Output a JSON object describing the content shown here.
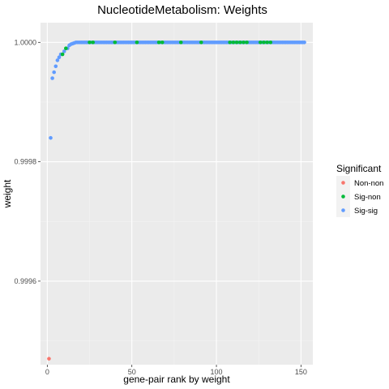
{
  "chart_data": {
    "type": "scatter",
    "title": "NucleotideMetabolism: Weights",
    "xlabel": "gene-pair rank by weight",
    "ylabel": "weight",
    "xlim": [
      -4,
      157
    ],
    "ylim": [
      0.99946,
      1.000033
    ],
    "x_ticks": [
      0,
      50,
      100,
      150
    ],
    "x_tick_labels": [
      "0",
      "50",
      "100",
      "150"
    ],
    "y_ticks": [
      0.9996,
      0.9998,
      1.0
    ],
    "y_tick_labels": [
      "0.9996",
      "0.9998",
      "1.0000"
    ],
    "grid": true,
    "legend": {
      "title": "Significant",
      "placement": "right",
      "entries": [
        {
          "label": "Non-non",
          "color": "#F8766D"
        },
        {
          "label": "Sig-non",
          "color": "#00BA38"
        },
        {
          "label": "Sig-sig",
          "color": "#619CFF"
        }
      ]
    },
    "series": [
      {
        "name": "Non-non",
        "color": "#F8766D",
        "points": [
          [
            1,
            0.99947
          ]
        ]
      },
      {
        "name": "Sig-non",
        "color": "#00BA38",
        "points": [
          [
            9,
            0.99998
          ],
          [
            11,
            0.99999
          ],
          [
            25,
            1.0
          ],
          [
            27,
            1.0
          ],
          [
            40,
            1.0
          ],
          [
            53,
            1.0
          ],
          [
            66,
            1.0
          ],
          [
            68,
            1.0
          ],
          [
            79,
            1.0
          ],
          [
            91,
            1.0
          ],
          [
            108,
            1.0
          ],
          [
            110,
            1.0
          ],
          [
            112,
            1.0
          ],
          [
            114,
            1.0
          ],
          [
            116,
            1.0
          ],
          [
            118,
            1.0
          ],
          [
            126,
            1.0
          ],
          [
            128,
            1.0
          ],
          [
            130,
            1.0
          ],
          [
            132,
            1.0
          ]
        ]
      },
      {
        "name": "Sig-sig",
        "color": "#619CFF",
        "points": [
          [
            2,
            0.99984
          ],
          [
            3,
            0.99994
          ],
          [
            4,
            0.99995
          ],
          [
            5,
            0.99996
          ],
          [
            6,
            0.99997
          ],
          [
            7,
            0.999975
          ],
          [
            8,
            0.99998
          ],
          [
            10,
            0.999985
          ],
          [
            12,
            0.99999
          ],
          [
            13,
            0.999995
          ],
          [
            14,
            0.999997
          ],
          [
            15,
            0.999998
          ],
          [
            16,
            0.999999
          ],
          [
            17,
            1.0
          ],
          [
            18,
            1.0
          ],
          [
            19,
            1.0
          ],
          [
            20,
            1.0
          ],
          [
            21,
            1.0
          ],
          [
            22,
            1.0
          ],
          [
            23,
            1.0
          ],
          [
            24,
            1.0
          ],
          [
            26,
            1.0
          ],
          [
            28,
            1.0
          ],
          [
            29,
            1.0
          ],
          [
            30,
            1.0
          ],
          [
            31,
            1.0
          ],
          [
            32,
            1.0
          ],
          [
            33,
            1.0
          ],
          [
            34,
            1.0
          ],
          [
            35,
            1.0
          ],
          [
            36,
            1.0
          ],
          [
            37,
            1.0
          ],
          [
            38,
            1.0
          ],
          [
            39,
            1.0
          ],
          [
            41,
            1.0
          ],
          [
            42,
            1.0
          ],
          [
            43,
            1.0
          ],
          [
            44,
            1.0
          ],
          [
            45,
            1.0
          ],
          [
            46,
            1.0
          ],
          [
            47,
            1.0
          ],
          [
            48,
            1.0
          ],
          [
            49,
            1.0
          ],
          [
            50,
            1.0
          ],
          [
            51,
            1.0
          ],
          [
            52,
            1.0
          ],
          [
            54,
            1.0
          ],
          [
            55,
            1.0
          ],
          [
            56,
            1.0
          ],
          [
            57,
            1.0
          ],
          [
            58,
            1.0
          ],
          [
            59,
            1.0
          ],
          [
            60,
            1.0
          ],
          [
            61,
            1.0
          ],
          [
            62,
            1.0
          ],
          [
            63,
            1.0
          ],
          [
            64,
            1.0
          ],
          [
            65,
            1.0
          ],
          [
            67,
            1.0
          ],
          [
            69,
            1.0
          ],
          [
            70,
            1.0
          ],
          [
            71,
            1.0
          ],
          [
            72,
            1.0
          ],
          [
            73,
            1.0
          ],
          [
            74,
            1.0
          ],
          [
            75,
            1.0
          ],
          [
            76,
            1.0
          ],
          [
            77,
            1.0
          ],
          [
            78,
            1.0
          ],
          [
            80,
            1.0
          ],
          [
            81,
            1.0
          ],
          [
            82,
            1.0
          ],
          [
            83,
            1.0
          ],
          [
            84,
            1.0
          ],
          [
            85,
            1.0
          ],
          [
            86,
            1.0
          ],
          [
            87,
            1.0
          ],
          [
            88,
            1.0
          ],
          [
            89,
            1.0
          ],
          [
            90,
            1.0
          ],
          [
            92,
            1.0
          ],
          [
            93,
            1.0
          ],
          [
            94,
            1.0
          ],
          [
            95,
            1.0
          ],
          [
            96,
            1.0
          ],
          [
            97,
            1.0
          ],
          [
            98,
            1.0
          ],
          [
            99,
            1.0
          ],
          [
            100,
            1.0
          ],
          [
            101,
            1.0
          ],
          [
            102,
            1.0
          ],
          [
            103,
            1.0
          ],
          [
            104,
            1.0
          ],
          [
            105,
            1.0
          ],
          [
            106,
            1.0
          ],
          [
            107,
            1.0
          ],
          [
            109,
            1.0
          ],
          [
            111,
            1.0
          ],
          [
            113,
            1.0
          ],
          [
            115,
            1.0
          ],
          [
            117,
            1.0
          ],
          [
            119,
            1.0
          ],
          [
            120,
            1.0
          ],
          [
            121,
            1.0
          ],
          [
            122,
            1.0
          ],
          [
            123,
            1.0
          ],
          [
            124,
            1.0
          ],
          [
            125,
            1.0
          ],
          [
            127,
            1.0
          ],
          [
            129,
            1.0
          ],
          [
            131,
            1.0
          ],
          [
            133,
            1.0
          ],
          [
            134,
            1.0
          ],
          [
            135,
            1.0
          ],
          [
            136,
            1.0
          ],
          [
            137,
            1.0
          ],
          [
            138,
            1.0
          ],
          [
            139,
            1.0
          ],
          [
            140,
            1.0
          ],
          [
            141,
            1.0
          ],
          [
            142,
            1.0
          ],
          [
            143,
            1.0
          ],
          [
            144,
            1.0
          ],
          [
            145,
            1.0
          ],
          [
            146,
            1.0
          ],
          [
            147,
            1.0
          ],
          [
            148,
            1.0
          ],
          [
            149,
            1.0
          ],
          [
            150,
            1.0
          ],
          [
            151,
            1.0
          ],
          [
            152,
            1.0
          ]
        ]
      }
    ]
  }
}
